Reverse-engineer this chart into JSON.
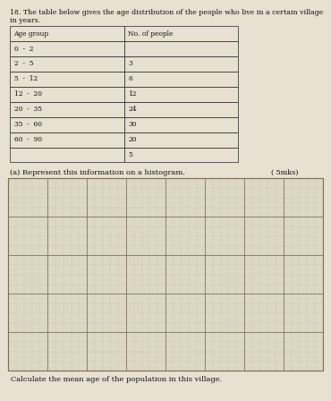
{
  "title_line1": "18. The table below gives the age distribution of the people who live in a certain village in years.",
  "table_rows": [
    [
      "Age group",
      "No. of people"
    ],
    [
      "0  -  2",
      ""
    ],
    [
      "2  -  5",
      "3"
    ],
    [
      "5  -  12",
      "6"
    ],
    [
      "12  -  20",
      "12"
    ],
    [
      "20  -  35",
      "24"
    ],
    [
      "35  -  60",
      "30"
    ],
    [
      "60  -  90",
      "20"
    ],
    [
      "",
      "5"
    ]
  ],
  "part_a_label": "(a) Represent this information on a histogram.",
  "part_a_marks": "( 5mks)",
  "part_b_label": "   Calculate the mean age of the population in this village.",
  "bg_color": "#e8e0d0",
  "table_border_color": "#444444",
  "text_color": "#111111",
  "graph_bg": "#ddd8c4",
  "grid_minor_color": "#aaa080",
  "grid_major_color": "#7a7050"
}
